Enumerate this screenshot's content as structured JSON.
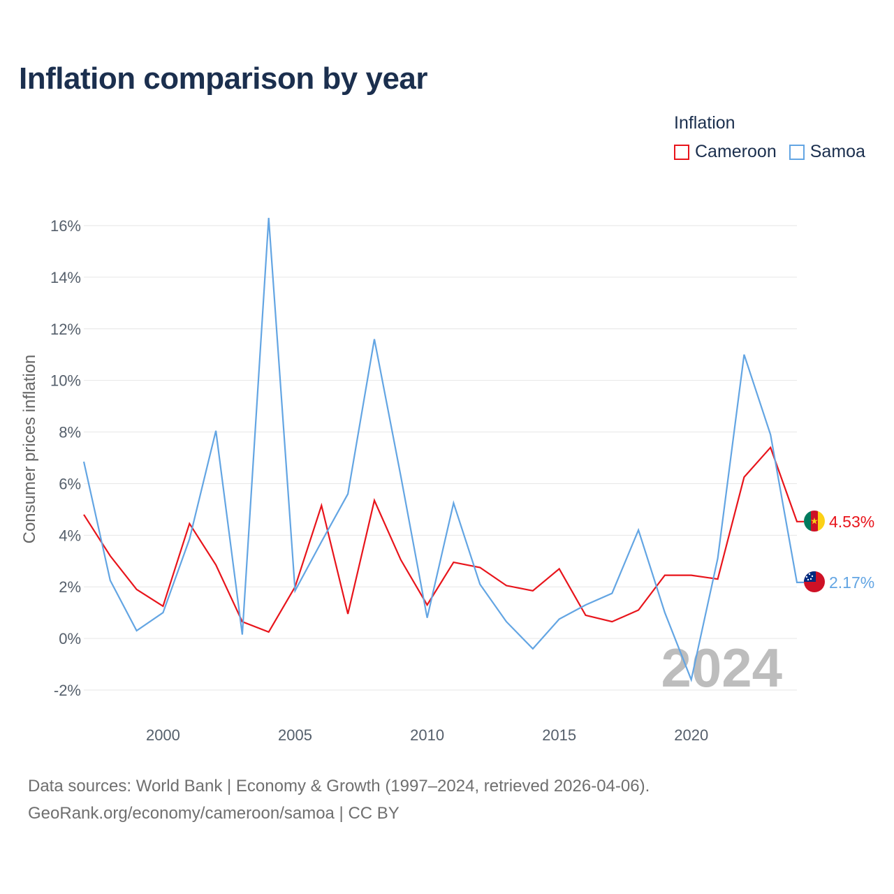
{
  "title": "Inflation comparison by year",
  "legend": {
    "title": "Inflation",
    "items": [
      {
        "label": "Cameroon",
        "color": "#e8141b"
      },
      {
        "label": "Samoa",
        "color": "#63a5e3"
      }
    ]
  },
  "chart_data": {
    "type": "line",
    "title": "Inflation comparison by year",
    "xlabel": "",
    "ylabel": "Consumer prices inflation",
    "xlim": [
      1997,
      2024
    ],
    "ylim": [
      -2,
      16
    ],
    "x_ticks": [
      2000,
      2005,
      2010,
      2015,
      2020
    ],
    "y_ticks": [
      -2,
      0,
      2,
      4,
      6,
      8,
      10,
      12,
      14,
      16
    ],
    "y_tick_labels": [
      "-2%",
      "0%",
      "2%",
      "4%",
      "6%",
      "8%",
      "10%",
      "12%",
      "14%",
      "16%"
    ],
    "grid": true,
    "x": [
      1997,
      1998,
      1999,
      2000,
      2001,
      2002,
      2003,
      2004,
      2005,
      2006,
      2007,
      2008,
      2009,
      2010,
      2011,
      2012,
      2013,
      2014,
      2015,
      2016,
      2017,
      2018,
      2019,
      2020,
      2021,
      2022,
      2023,
      2024
    ],
    "series": [
      {
        "name": "Cameroon",
        "color": "#e8141b",
        "end_label": "4.53%",
        "values": [
          4.8,
          3.2,
          1.9,
          1.25,
          4.45,
          2.85,
          0.65,
          0.25,
          2.0,
          5.15,
          0.95,
          5.35,
          3.05,
          1.3,
          2.95,
          2.75,
          2.05,
          1.85,
          2.7,
          0.9,
          0.65,
          1.1,
          2.45,
          2.45,
          2.3,
          6.25,
          7.4,
          4.53
        ]
      },
      {
        "name": "Samoa",
        "color": "#63a5e3",
        "end_label": "2.17%",
        "values": [
          6.85,
          2.25,
          0.3,
          1.0,
          3.85,
          8.05,
          0.15,
          16.3,
          1.85,
          3.75,
          5.6,
          11.6,
          6.3,
          0.8,
          5.25,
          2.1,
          0.65,
          -0.4,
          0.75,
          1.3,
          1.75,
          4.2,
          1.0,
          -1.6,
          3.1,
          11.0,
          7.9,
          2.17
        ]
      }
    ],
    "annotation": "2024"
  },
  "source": {
    "line1": "Data sources: World Bank | Economy & Growth (1997–2024, retrieved 2026-04-06).",
    "line2": "GeoRank.org/economy/cameroon/samoa | CC BY"
  }
}
